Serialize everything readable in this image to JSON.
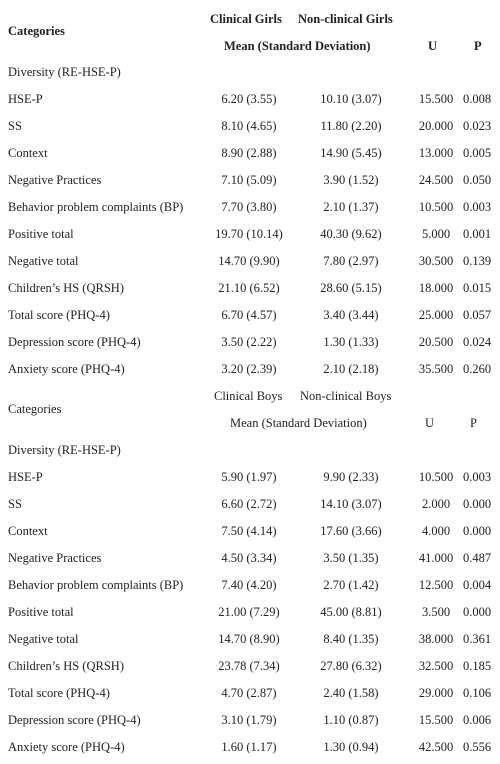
{
  "girls": {
    "header": {
      "categories_label": "Categories",
      "group1_label": "Clinical Girls",
      "group2_label": "Non-clinical Girls",
      "mean_sd_label": "Mean (Standard Deviation)",
      "u_label": "U",
      "p_label": "P"
    },
    "section_label": "Diversity (RE-HSE-P)",
    "rows": [
      {
        "label": "HSE-P",
        "clinical": "6.20 (3.55)",
        "nonclinical": "10.10 (3.07)",
        "u": "15.500",
        "p": "0.008"
      },
      {
        "label": "SS",
        "clinical": "8.10 (4.65)",
        "nonclinical": "11.80 (2.20)",
        "u": "20.000",
        "p": "0.023"
      },
      {
        "label": "Context",
        "clinical": "8.90 (2.88)",
        "nonclinical": "14.90 (5.45)",
        "u": "13.000",
        "p": "0.005"
      },
      {
        "label": "Negative Practices",
        "clinical": "7.10 (5.09)",
        "nonclinical": "3.90 (1.52)",
        "u": "24.500",
        "p": "0.050"
      },
      {
        "label": "Behavior problem complaints (BP)",
        "clinical": "7.70 (3.80)",
        "nonclinical": "2.10 (1.37)",
        "u": "10.500",
        "p": "0.003"
      },
      {
        "label": "Positive total",
        "clinical": "19.70 (10.14)",
        "nonclinical": "40.30 (9.62)",
        "u": "5.000",
        "p": "0.001"
      },
      {
        "label": "Negative total",
        "clinical": "14.70 (9.90)",
        "nonclinical": "7.80 (2.97)",
        "u": "30.500",
        "p": "0.139"
      },
      {
        "label": "Children’s HS (QRSH)",
        "clinical": "21.10 (6.52)",
        "nonclinical": "28.60 (5.15)",
        "u": "18.000",
        "p": "0.015"
      },
      {
        "label": "Total score (PHQ-4)",
        "clinical": "6.70 (4.57)",
        "nonclinical": "3.40 (3.44)",
        "u": "25.000",
        "p": "0.057"
      },
      {
        "label": "Depression score (PHQ-4)",
        "clinical": "3.50 (2.22)",
        "nonclinical": "1.30 (1.33)",
        "u": "20.500",
        "p": "0.024"
      },
      {
        "label": "Anxiety score (PHQ-4)",
        "clinical": "3.20 (2.39)",
        "nonclinical": "2.10 (2.18)",
        "u": "35.500",
        "p": "0.260"
      }
    ]
  },
  "boys": {
    "header": {
      "categories_label": "Categories",
      "group1_label": "Clinical Boys",
      "group2_label": "Non-clinical Boys",
      "mean_sd_label": "Mean (Standard Deviation)",
      "u_label": "U",
      "p_label": "P"
    },
    "section_label": "Diversity (RE-HSE-P)",
    "rows": [
      {
        "label": "HSE-P",
        "clinical": "5.90 (1.97)",
        "nonclinical": "9.90 (2.33)",
        "u": "10.500",
        "p": "0.003"
      },
      {
        "label": "SS",
        "clinical": "6.60 (2.72)",
        "nonclinical": "14.10 (3.07)",
        "u": "2.000",
        "p": "0.000"
      },
      {
        "label": "Context",
        "clinical": "7.50 (4.14)",
        "nonclinical": "17.60 (3.66)",
        "u": "4.000",
        "p": "0.000"
      },
      {
        "label": "Negative Practices",
        "clinical": "4.50 (3.34)",
        "nonclinical": "3.50 (1.35)",
        "u": "41.000",
        "p": "0.487"
      },
      {
        "label": "Behavior problem complaints (BP)",
        "clinical": "7.40 (4.20)",
        "nonclinical": "2.70 (1.42)",
        "u": "12.500",
        "p": "0.004"
      },
      {
        "label": "Positive total",
        "clinical": "21.00 (7.29)",
        "nonclinical": "45.00 (8.81)",
        "u": "3.500",
        "p": "0.000"
      },
      {
        "label": "Negative total",
        "clinical": "14.70 (8.90)",
        "nonclinical": "8.40 (1.35)",
        "u": "38.000",
        "p": "0.361"
      },
      {
        "label": "Children’s HS (QRSH)",
        "clinical": "23.78 (7.34)",
        "nonclinical": "27.80 (6.32)",
        "u": "32.500",
        "p": "0.185"
      },
      {
        "label": "Total score (PHQ-4)",
        "clinical": "4.70 (2.87)",
        "nonclinical": "2.40 (1.58)",
        "u": "29.000",
        "p": "0.106"
      },
      {
        "label": "Depression score (PHQ-4)",
        "clinical": "3.10 (1.79)",
        "nonclinical": "1.10 (0.87)",
        "u": "15.500",
        "p": "0.006"
      },
      {
        "label": "Anxiety score (PHQ-4)",
        "clinical": "1.60 (1.17)",
        "nonclinical": "1.30 (0.94)",
        "u": "42.500",
        "p": "0.556"
      }
    ]
  }
}
